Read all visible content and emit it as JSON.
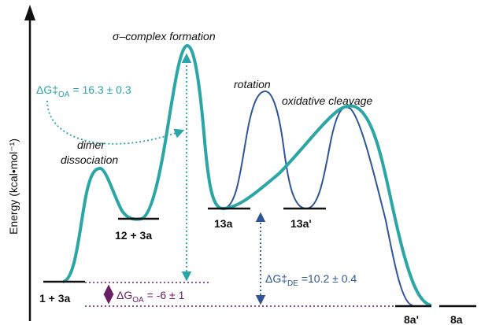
{
  "axis": {
    "ylabel": "Energy (kcal•mol⁻¹)"
  },
  "species": {
    "s1": "1 + 3a",
    "s12": "12 + 3a",
    "s13": "13a",
    "s13p": "13a'",
    "s8p": "8a'",
    "s8": "8a"
  },
  "processes": {
    "dimer_line1": "dimer",
    "dimer_line2": "dissociation",
    "sigma": "σ–complex formation",
    "rotation": "rotation",
    "oxidative": "oxidative cleavage"
  },
  "energies": {
    "dg_oa_barrier": {
      "symbol": "ΔG‡",
      "sub": "OA",
      "value": " = 16.3 ± 0.3"
    },
    "dg_de_barrier": {
      "symbol": "ΔG‡",
      "sub": "DE",
      "value": " =10.2 ± 0.4"
    },
    "dg_oa": {
      "symbol": "ΔG",
      "sub": "OA",
      "value": " = -6 ± 1"
    }
  },
  "colors": {
    "teal": "#2aa6a6",
    "blue": "#2f5597",
    "purple": "#6a1e66",
    "black": "#111111"
  }
}
